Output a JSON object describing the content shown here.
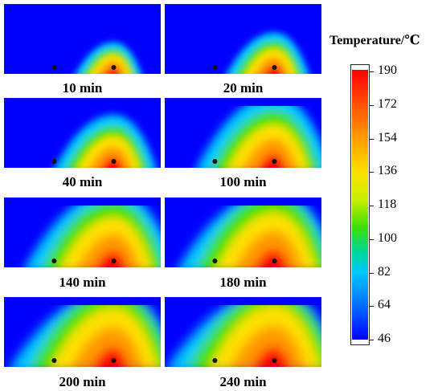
{
  "panels": [
    {
      "label": "10 min",
      "spread": 0.18
    },
    {
      "label": "20 min",
      "spread": 0.28
    },
    {
      "label": "40 min",
      "spread": 0.4
    },
    {
      "label": "100 min",
      "spread": 0.6
    },
    {
      "label": "140 min",
      "spread": 0.72
    },
    {
      "label": "180 min",
      "spread": 0.8
    },
    {
      "label": "200 min",
      "spread": 0.88
    },
    {
      "label": "240 min",
      "spread": 0.92
    }
  ],
  "colorbar": {
    "title": "Temperature/℃",
    "ticks": [
      "190",
      "172",
      "154",
      "136",
      "118",
      "100",
      "82",
      "64",
      "46"
    ],
    "min": 46,
    "max": 190,
    "colors": [
      "#0000ff",
      "#00c8ff",
      "#40e000",
      "#ffe000",
      "#ff9a00",
      "#ff0000"
    ]
  }
}
